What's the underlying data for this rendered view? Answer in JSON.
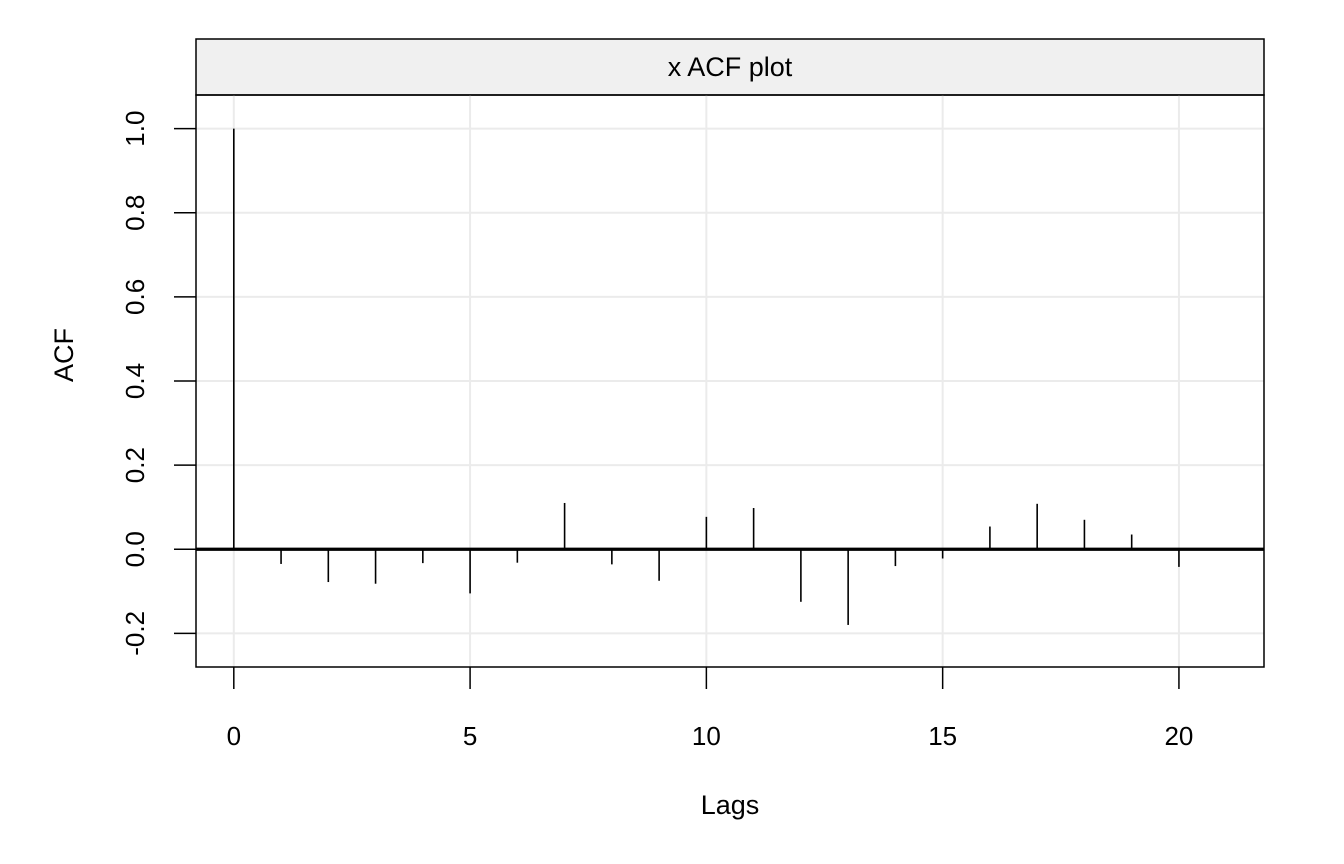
{
  "chart_data": {
    "type": "bar",
    "title": "x ACF plot",
    "xlabel": "Lags",
    "ylabel": "ACF",
    "x": [
      0,
      1,
      2,
      3,
      4,
      5,
      6,
      7,
      8,
      9,
      10,
      11,
      12,
      13,
      14,
      15,
      16,
      17,
      18,
      19,
      20
    ],
    "values": [
      1.0,
      -0.035,
      -0.078,
      -0.082,
      -0.033,
      -0.105,
      -0.032,
      0.11,
      -0.036,
      -0.075,
      0.077,
      0.098,
      -0.125,
      -0.18,
      -0.04,
      -0.022,
      0.054,
      0.108,
      0.07,
      0.035,
      -0.042
    ],
    "xlim": [
      -0.8,
      21.8
    ],
    "ylim": [
      -0.28,
      1.08
    ],
    "xticks": [
      0,
      5,
      10,
      15,
      20
    ],
    "xtick_labels": [
      "0",
      "5",
      "10",
      "15",
      "20"
    ],
    "yticks": [
      -0.2,
      0.0,
      0.2,
      0.4,
      0.6,
      0.8,
      1.0
    ],
    "ytick_labels": [
      "-0.2",
      "0.0",
      "0.2",
      "0.4",
      "0.6",
      "0.8",
      "1.0"
    ],
    "grid": true,
    "reference_line": 0.0,
    "colors": {
      "bars": "#000000",
      "grid": "#ebebeb",
      "strip_fill": "#f0f0f0",
      "frame": "#000000"
    }
  }
}
